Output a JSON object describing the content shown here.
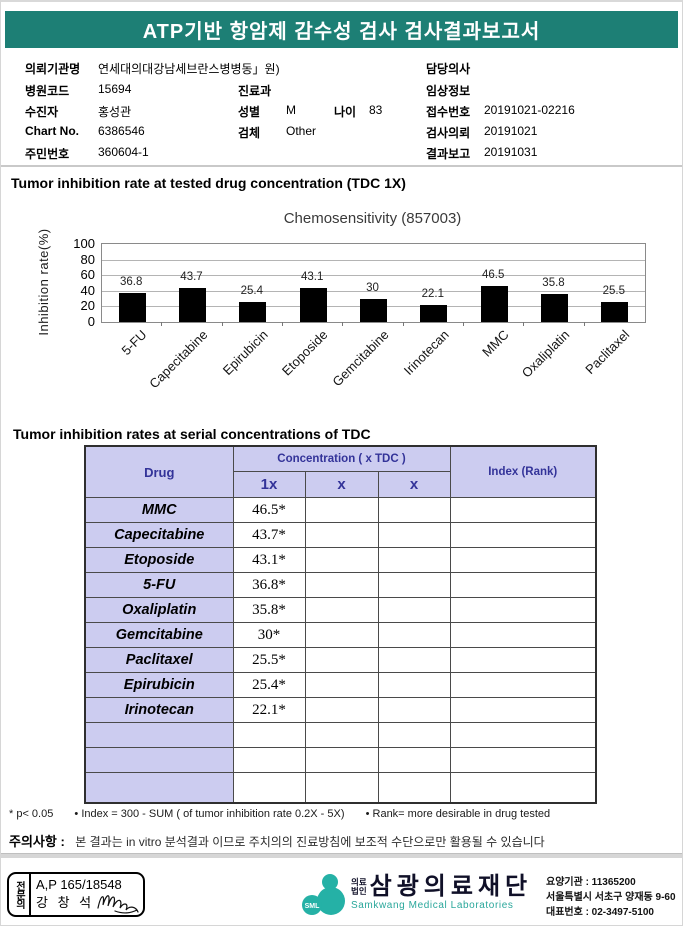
{
  "header": {
    "title": "ATP기반 항암제 감수성 검사 검사결과보고서"
  },
  "patient": {
    "left": [
      {
        "label": "의뢰기관명",
        "value": "연세대의대강남세브란스병병동」원)"
      },
      {
        "label": "병원코드",
        "value": "15694"
      },
      {
        "label": "수진자",
        "value": "홍성관"
      },
      {
        "label": "Chart No.",
        "value": "6386546"
      },
      {
        "label": "주민번호",
        "value": "360604-1"
      }
    ],
    "middle": [
      {
        "label": "진료과",
        "value": ""
      },
      {
        "label": "성별",
        "value": "M"
      },
      {
        "label": "나이",
        "value": "83"
      },
      {
        "label": "검체",
        "value": "Other"
      }
    ],
    "right": [
      {
        "label": "담당의사",
        "value": ""
      },
      {
        "label": "임상정보",
        "value": ""
      },
      {
        "label": "접수번호",
        "value": "20191021-02216"
      },
      {
        "label": "검사의뢰",
        "value": "20191021"
      },
      {
        "label": "결과보고",
        "value": "20191031"
      }
    ]
  },
  "section1": {
    "title": "Tumor inhibition rate at tested drug concentration (TDC 1X)"
  },
  "chart_data": {
    "type": "bar",
    "title": "Chemosensitivity (857003)",
    "ylabel": "Inhibition rate(%)",
    "ylim": [
      0,
      100
    ],
    "yticks": [
      0,
      20,
      40,
      60,
      80,
      100
    ],
    "categories": [
      "5-FU",
      "Capecitabine",
      "Epirubicin",
      "Etoposide",
      "Gemcitabine",
      "Irinotecan",
      "MMC",
      "Oxaliplatin",
      "Paclitaxel"
    ],
    "values": [
      36.8,
      43.7,
      25.4,
      43.1,
      30,
      22.1,
      46.5,
      35.8,
      25.5
    ],
    "bar_color": "#000000",
    "grid": true,
    "legend": "none"
  },
  "section2": {
    "title": "Tumor inhibition rates at serial concentrations of TDC"
  },
  "table": {
    "headers": {
      "drug": "Drug",
      "concentration": "Concentration ( x TDC )",
      "c1": "1x",
      "c2": "x",
      "c3": "x",
      "index": "Index (Rank)"
    },
    "rows": [
      {
        "drug": "MMC",
        "c1": "46.5*"
      },
      {
        "drug": "Capecitabine",
        "c1": "43.7*"
      },
      {
        "drug": "Etoposide",
        "c1": "43.1*"
      },
      {
        "drug": "5-FU",
        "c1": "36.8*"
      },
      {
        "drug": "Oxaliplatin",
        "c1": "35.8*"
      },
      {
        "drug": "Gemcitabine",
        "c1": "30*"
      },
      {
        "drug": "Paclitaxel",
        "c1": "25.5*"
      },
      {
        "drug": "Epirubicin",
        "c1": "25.4*"
      },
      {
        "drug": "Irinotecan",
        "c1": "22.1*"
      }
    ],
    "empty_rows": 3
  },
  "footnotes": {
    "pvalue": "* p< 0.05",
    "index": "• Index = 300 - SUM ( of tumor inhibition rate 0.2X  -  5X)",
    "rank": "• Rank= more desirable in drug tested"
  },
  "caution": {
    "label": "주의사항 :",
    "text": "본 결과는 in vitro 분석결과 이므로 주치의의 진료방침에 보조적 수단으로만 활용될 수 있습니다"
  },
  "footer": {
    "stamp": {
      "side_label": "전문의",
      "line1": "A,P 165/18548",
      "line2": "강 창 석"
    },
    "org": {
      "prefix1": "의료",
      "prefix2": "법인",
      "name": "삼광의료재단",
      "name_en": "Samkwang Medical Laboratories",
      "logo_text": "SML"
    },
    "contact": [
      "요양기관 : 11365200",
      "서울특별시 서초구 양재동 9-60",
      "대표번호 : 02-3497-5100"
    ]
  },
  "colors": {
    "header_teal": "#1d7f75",
    "logo_teal": "#25b1a6",
    "table_header_bg": "#ccccf0",
    "table_header_text": "#333399",
    "bar_black": "#000000"
  }
}
